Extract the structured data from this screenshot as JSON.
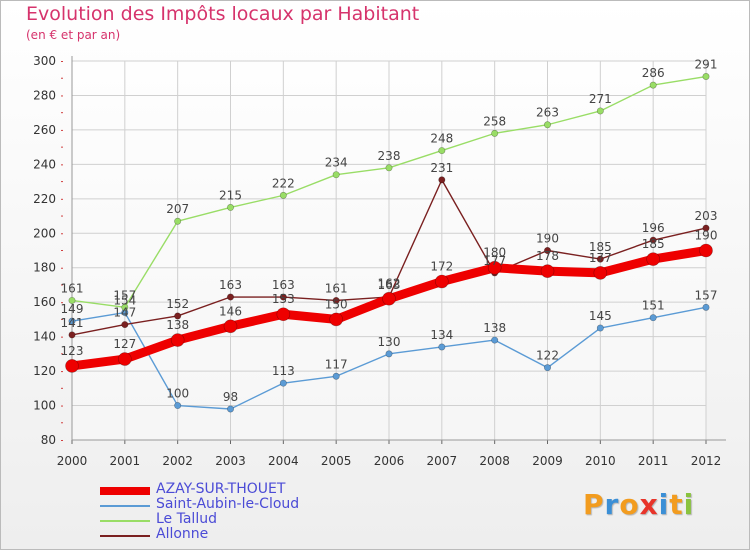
{
  "header": {
    "title": "Evolution des Impôts locaux par Habitant",
    "subtitle": "(en € et par an)"
  },
  "brand": {
    "text": "Proxiti",
    "colors": [
      "#f29c1f",
      "#3b8fd6",
      "#f29c1f",
      "#e8342a",
      "#3b8fd6",
      "#f29c1f",
      "#8ac33f"
    ]
  },
  "chart_data": {
    "type": "line",
    "title": "Evolution des Impôts locaux par Habitant",
    "subtitle": "(en € et par an)",
    "x": [
      "2000",
      "2001",
      "2002",
      "2003",
      "2004",
      "2005",
      "2006",
      "2007",
      "2008",
      "2009",
      "2010",
      "2011",
      "2012"
    ],
    "ylim": [
      80,
      300
    ],
    "yticks": [
      80,
      100,
      120,
      140,
      160,
      180,
      200,
      220,
      240,
      260,
      280,
      300
    ],
    "grid": true,
    "legend_position": "bottom-left",
    "series": [
      {
        "name": "AZAY-SUR-THOUET",
        "color": "#ee0000",
        "bold": true,
        "values": [
          123,
          127,
          138,
          146,
          153,
          150,
          162,
          172,
          180,
          178,
          177,
          185,
          190
        ]
      },
      {
        "name": "Saint-Aubin-le-Cloud",
        "color": "#5b9bd5",
        "bold": false,
        "values": [
          149,
          154,
          100,
          98,
          113,
          117,
          130,
          134,
          138,
          122,
          145,
          151,
          157
        ]
      },
      {
        "name": "Le Tallud",
        "color": "#99dd66",
        "bold": false,
        "values": [
          161,
          157,
          207,
          215,
          222,
          234,
          238,
          248,
          258,
          263,
          271,
          286,
          291
        ]
      },
      {
        "name": "Allonne",
        "color": "#7a2020",
        "bold": false,
        "values": [
          141,
          147,
          152,
          163,
          163,
          161,
          163,
          231,
          177,
          190,
          185,
          196,
          203
        ]
      }
    ]
  }
}
